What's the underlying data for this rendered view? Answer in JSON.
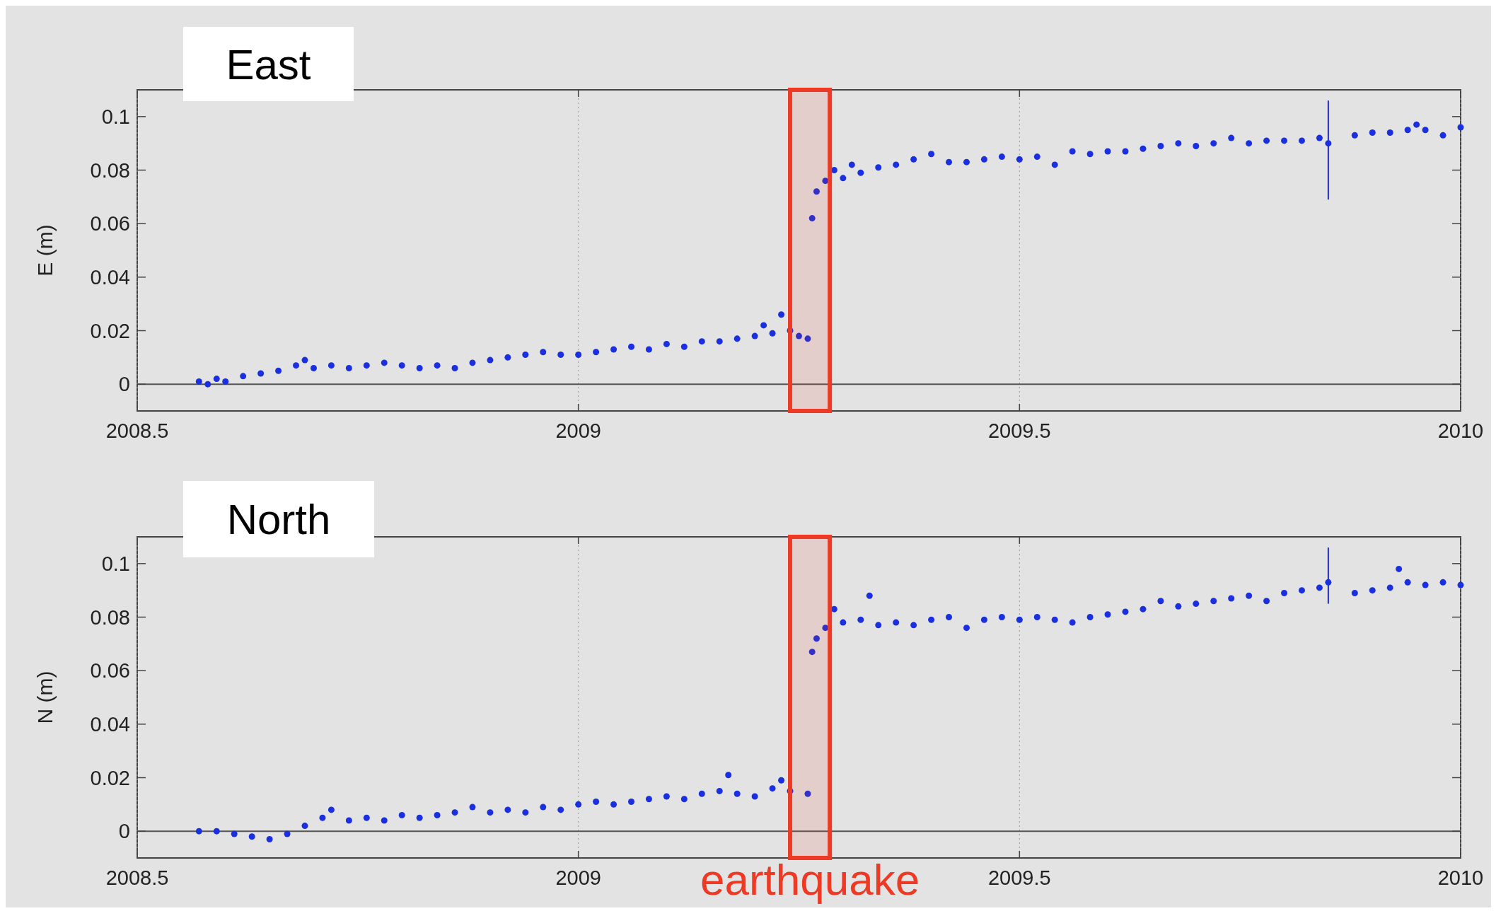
{
  "chart_data": [
    {
      "type": "scatter",
      "title": "East",
      "ylabel": "E (m)",
      "xlim": [
        2008.5,
        2010
      ],
      "xticks": [
        2008.5,
        2009,
        2009.5,
        2010
      ],
      "ylim": [
        -0.01,
        0.11
      ],
      "yticks": [
        0,
        0.02,
        0.04,
        0.06,
        0.08,
        0.1
      ],
      "grid": "x",
      "marker": "circle",
      "ref_lines": [
        {
          "axis": "y",
          "value": 0,
          "color": "#555555"
        }
      ],
      "bands": [
        {
          "axis": "x",
          "from": 2009.24,
          "to": 2009.285,
          "color": "#ee3a24"
        }
      ],
      "series": [
        {
          "color": "#1a2fe0",
          "x": [
            2008.57,
            2008.58,
            2008.59,
            2008.6,
            2008.62,
            2008.64,
            2008.66,
            2008.68,
            2008.69,
            2008.7,
            2008.72,
            2008.74,
            2008.76,
            2008.78,
            2008.8,
            2008.82,
            2008.84,
            2008.86,
            2008.88,
            2008.9,
            2008.92,
            2008.94,
            2008.96,
            2008.98,
            2009.0,
            2009.02,
            2009.04,
            2009.06,
            2009.08,
            2009.1,
            2009.12,
            2009.14,
            2009.16,
            2009.18,
            2009.2,
            2009.21,
            2009.22,
            2009.23,
            2009.24,
            2009.25,
            2009.26,
            2009.265,
            2009.27,
            2009.28,
            2009.29,
            2009.3,
            2009.31,
            2009.32,
            2009.34,
            2009.36,
            2009.38,
            2009.4,
            2009.42,
            2009.44,
            2009.46,
            2009.48,
            2009.5,
            2009.52,
            2009.54,
            2009.56,
            2009.58,
            2009.6,
            2009.62,
            2009.64,
            2009.66,
            2009.68,
            2009.7,
            2009.72,
            2009.74,
            2009.76,
            2009.78,
            2009.8,
            2009.82,
            2009.84,
            2009.88,
            2009.9,
            2009.92,
            2009.94,
            2009.95,
            2009.96,
            2009.98,
            2010.0
          ],
          "values": [
            0.001,
            0.0,
            0.002,
            0.001,
            0.003,
            0.004,
            0.005,
            0.007,
            0.009,
            0.006,
            0.007,
            0.006,
            0.007,
            0.008,
            0.007,
            0.006,
            0.007,
            0.006,
            0.008,
            0.009,
            0.01,
            0.011,
            0.012,
            0.011,
            0.011,
            0.012,
            0.013,
            0.014,
            0.013,
            0.015,
            0.014,
            0.016,
            0.016,
            0.017,
            0.018,
            0.022,
            0.019,
            0.026,
            0.02,
            0.018,
            0.017,
            0.062,
            0.072,
            0.076,
            0.08,
            0.077,
            0.082,
            0.079,
            0.081,
            0.082,
            0.084,
            0.086,
            0.083,
            0.083,
            0.084,
            0.085,
            0.084,
            0.085,
            0.082,
            0.087,
            0.086,
            0.087,
            0.087,
            0.088,
            0.089,
            0.09,
            0.089,
            0.09,
            0.092,
            0.09,
            0.091,
            0.091,
            0.091,
            0.092,
            0.093,
            0.094,
            0.094,
            0.095,
            0.097,
            0.095,
            0.093,
            0.096
          ]
        },
        {
          "color": "#1a2fe0",
          "x": [
            2009.85
          ],
          "values": [
            0.09
          ],
          "errors": [
            [
              0.069,
              0.106
            ]
          ]
        }
      ]
    },
    {
      "type": "scatter",
      "title": "North",
      "ylabel": "N (m)",
      "xlim": [
        2008.5,
        2010
      ],
      "xticks": [
        2008.5,
        2009,
        2009.5,
        2010
      ],
      "ylim": [
        -0.01,
        0.11
      ],
      "yticks": [
        0,
        0.02,
        0.04,
        0.06,
        0.08,
        0.1
      ],
      "grid": "x",
      "marker": "circle",
      "ref_lines": [
        {
          "axis": "y",
          "value": 0,
          "color": "#555555"
        }
      ],
      "bands": [
        {
          "axis": "x",
          "from": 2009.24,
          "to": 2009.285,
          "label": "earthquake",
          "color": "#ee3a24"
        }
      ],
      "series": [
        {
          "color": "#1a2fe0",
          "x": [
            2008.57,
            2008.59,
            2008.61,
            2008.63,
            2008.65,
            2008.67,
            2008.69,
            2008.71,
            2008.72,
            2008.74,
            2008.76,
            2008.78,
            2008.8,
            2008.82,
            2008.84,
            2008.86,
            2008.88,
            2008.9,
            2008.92,
            2008.94,
            2008.96,
            2008.98,
            2009.0,
            2009.02,
            2009.04,
            2009.06,
            2009.08,
            2009.1,
            2009.12,
            2009.14,
            2009.16,
            2009.17,
            2009.18,
            2009.2,
            2009.22,
            2009.23,
            2009.24,
            2009.26,
            2009.265,
            2009.27,
            2009.28,
            2009.29,
            2009.3,
            2009.32,
            2009.33,
            2009.34,
            2009.36,
            2009.38,
            2009.4,
            2009.42,
            2009.44,
            2009.46,
            2009.48,
            2009.5,
            2009.52,
            2009.54,
            2009.56,
            2009.58,
            2009.6,
            2009.62,
            2009.64,
            2009.66,
            2009.68,
            2009.7,
            2009.72,
            2009.74,
            2009.76,
            2009.78,
            2009.8,
            2009.82,
            2009.84,
            2009.88,
            2009.9,
            2009.92,
            2009.93,
            2009.94,
            2009.96,
            2009.98,
            2010.0
          ],
          "values": [
            0.0,
            0.0,
            -0.001,
            -0.002,
            -0.003,
            -0.001,
            0.002,
            0.005,
            0.008,
            0.004,
            0.005,
            0.004,
            0.006,
            0.005,
            0.006,
            0.007,
            0.009,
            0.007,
            0.008,
            0.007,
            0.009,
            0.008,
            0.01,
            0.011,
            0.01,
            0.011,
            0.012,
            0.013,
            0.012,
            0.014,
            0.015,
            0.021,
            0.014,
            0.013,
            0.016,
            0.019,
            0.015,
            0.014,
            0.067,
            0.072,
            0.076,
            0.083,
            0.078,
            0.079,
            0.088,
            0.077,
            0.078,
            0.077,
            0.079,
            0.08,
            0.076,
            0.079,
            0.08,
            0.079,
            0.08,
            0.079,
            0.078,
            0.08,
            0.081,
            0.082,
            0.083,
            0.086,
            0.084,
            0.085,
            0.086,
            0.087,
            0.088,
            0.086,
            0.089,
            0.09,
            0.091,
            0.089,
            0.09,
            0.091,
            0.098,
            0.093,
            0.092,
            0.093,
            0.092
          ]
        },
        {
          "color": "#1a2fe0",
          "x": [
            2009.85
          ],
          "values": [
            0.093
          ],
          "errors": [
            [
              0.085,
              0.106
            ]
          ]
        }
      ]
    }
  ]
}
